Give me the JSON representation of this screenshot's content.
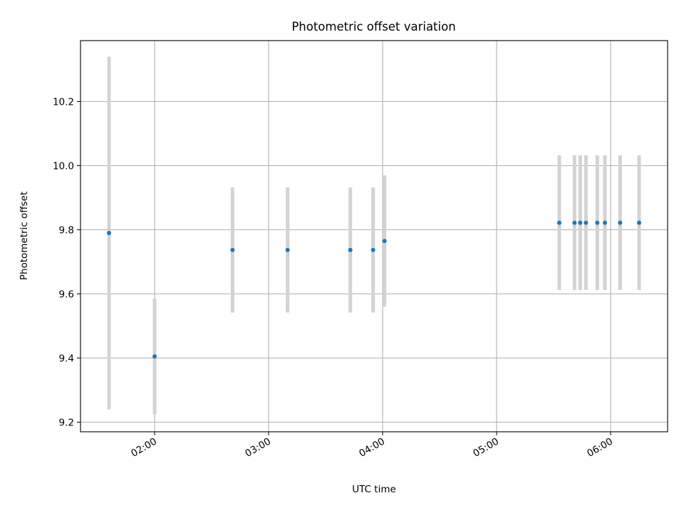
{
  "chart_data": {
    "type": "scatter",
    "title": "Photometric offset variation",
    "xlabel": "UTC time",
    "ylabel": "Photometric offset",
    "xlim": [
      "01:21",
      "06:30"
    ],
    "ylim": [
      9.17,
      10.39
    ],
    "grid": true,
    "legend": "none",
    "x_ticks": [
      "02:00",
      "03:00",
      "04:00",
      "05:00",
      "06:00"
    ],
    "y_ticks": [
      "9.2",
      "9.4",
      "9.6",
      "9.8",
      "10.0",
      "10.2"
    ],
    "point_color": "#1f77b4",
    "errorbar_color": "#d3d3d3",
    "series": [
      {
        "points": [
          {
            "x": "01:36",
            "y": 9.79,
            "err": 0.55
          },
          {
            "x": "02:00",
            "y": 9.405,
            "err": 0.18
          },
          {
            "x": "02:41",
            "y": 9.737,
            "err": 0.195
          },
          {
            "x": "03:10",
            "y": 9.737,
            "err": 0.195
          },
          {
            "x": "03:43",
            "y": 9.737,
            "err": 0.195
          },
          {
            "x": "03:55",
            "y": 9.737,
            "err": 0.195
          },
          {
            "x": "04:01",
            "y": 9.765,
            "err": 0.205
          },
          {
            "x": "05:33",
            "y": 9.822,
            "err": 0.21
          },
          {
            "x": "05:41",
            "y": 9.822,
            "err": 0.21
          },
          {
            "x": "05:44",
            "y": 9.822,
            "err": 0.21
          },
          {
            "x": "05:47",
            "y": 9.822,
            "err": 0.21
          },
          {
            "x": "05:53",
            "y": 9.822,
            "err": 0.21
          },
          {
            "x": "05:57",
            "y": 9.822,
            "err": 0.21
          },
          {
            "x": "06:05",
            "y": 9.822,
            "err": 0.21
          },
          {
            "x": "06:15",
            "y": 9.822,
            "err": 0.21
          }
        ]
      }
    ]
  }
}
